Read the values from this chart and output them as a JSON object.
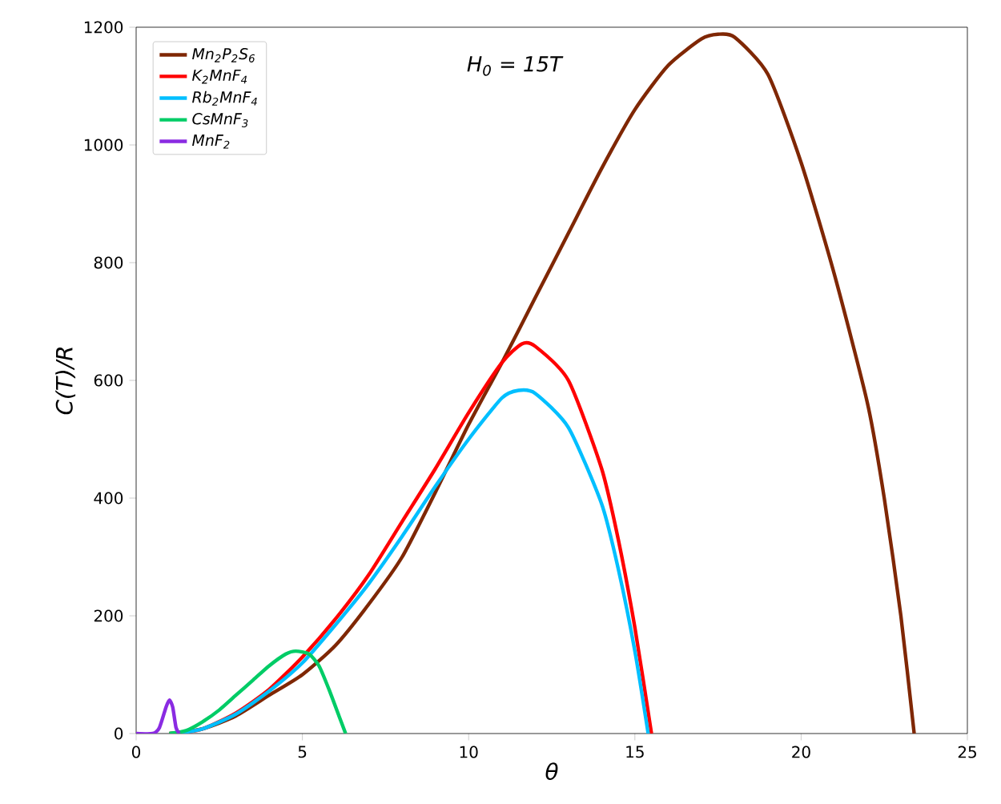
{
  "chart_data": {
    "type": "line",
    "xlabel": "θ",
    "ylabel": "C(T)/R",
    "annotations": [
      "H$_{0}$ = 15T"
    ],
    "xlim": [
      0,
      25
    ],
    "ylim": [
      0,
      1200
    ],
    "xticks": [
      0,
      5,
      10,
      15,
      20,
      25
    ],
    "yticks": [
      0,
      200,
      400,
      600,
      800,
      1000,
      1200
    ],
    "grid": false,
    "legend": "top left",
    "line_style": "solid",
    "marker": "none",
    "series": [
      {
        "name": "Mn$_{2}$P$_{2}$S$_{6}$",
        "color": "#7f2704",
        "x": [
          1,
          2,
          3,
          4,
          5,
          6,
          7,
          8,
          9,
          10,
          11,
          12,
          13,
          14,
          15,
          16,
          17,
          17.5,
          18,
          19,
          20,
          21,
          22,
          22.5,
          23,
          23.4
        ],
        "values": [
          0,
          8,
          30,
          65,
          100,
          150,
          220,
          300,
          410,
          525,
          630,
          740,
          850,
          960,
          1060,
          1135,
          1180,
          1188,
          1183,
          1120,
          970,
          780,
          560,
          400,
          200,
          0
        ]
      },
      {
        "name": "K$_{2}$MnF$_{4}$",
        "color": "#ff0000",
        "x": [
          1.2,
          2,
          3,
          4,
          5,
          6,
          7,
          8,
          9,
          10,
          11,
          11.6,
          12,
          13,
          14,
          14.5,
          15,
          15.5
        ],
        "values": [
          0,
          8,
          35,
          75,
          130,
          195,
          270,
          360,
          450,
          545,
          630,
          662,
          658,
          600,
          450,
          330,
          180,
          0
        ]
      },
      {
        "name": "Rb$_{2}$MnF$_{4}$",
        "color": "#00bfff",
        "x": [
          1.2,
          2,
          3,
          4,
          5,
          6,
          7,
          8,
          9,
          10,
          11,
          11.5,
          12,
          13,
          14,
          14.5,
          15,
          15.4
        ],
        "values": [
          0,
          8,
          33,
          72,
          120,
          185,
          255,
          335,
          420,
          500,
          570,
          583,
          578,
          520,
          390,
          280,
          140,
          0
        ]
      },
      {
        "name": "CsMnF$_{3}$",
        "color": "#00cc66",
        "x": [
          1,
          1.5,
          2,
          2.5,
          3,
          3.5,
          4,
          4.5,
          4.8,
          5.2,
          5.5,
          5.8,
          6.1,
          6.3
        ],
        "values": [
          0,
          5,
          20,
          40,
          65,
          90,
          115,
          135,
          140,
          135,
          115,
          75,
          30,
          0
        ]
      },
      {
        "name": "MnF$_{2}$",
        "color": "#8a2be2",
        "x": [
          0,
          0.5,
          0.7,
          0.9,
          1.0,
          1.1,
          1.2,
          1.3
        ],
        "values": [
          0,
          0,
          10,
          45,
          57,
          45,
          10,
          0
        ]
      }
    ]
  }
}
